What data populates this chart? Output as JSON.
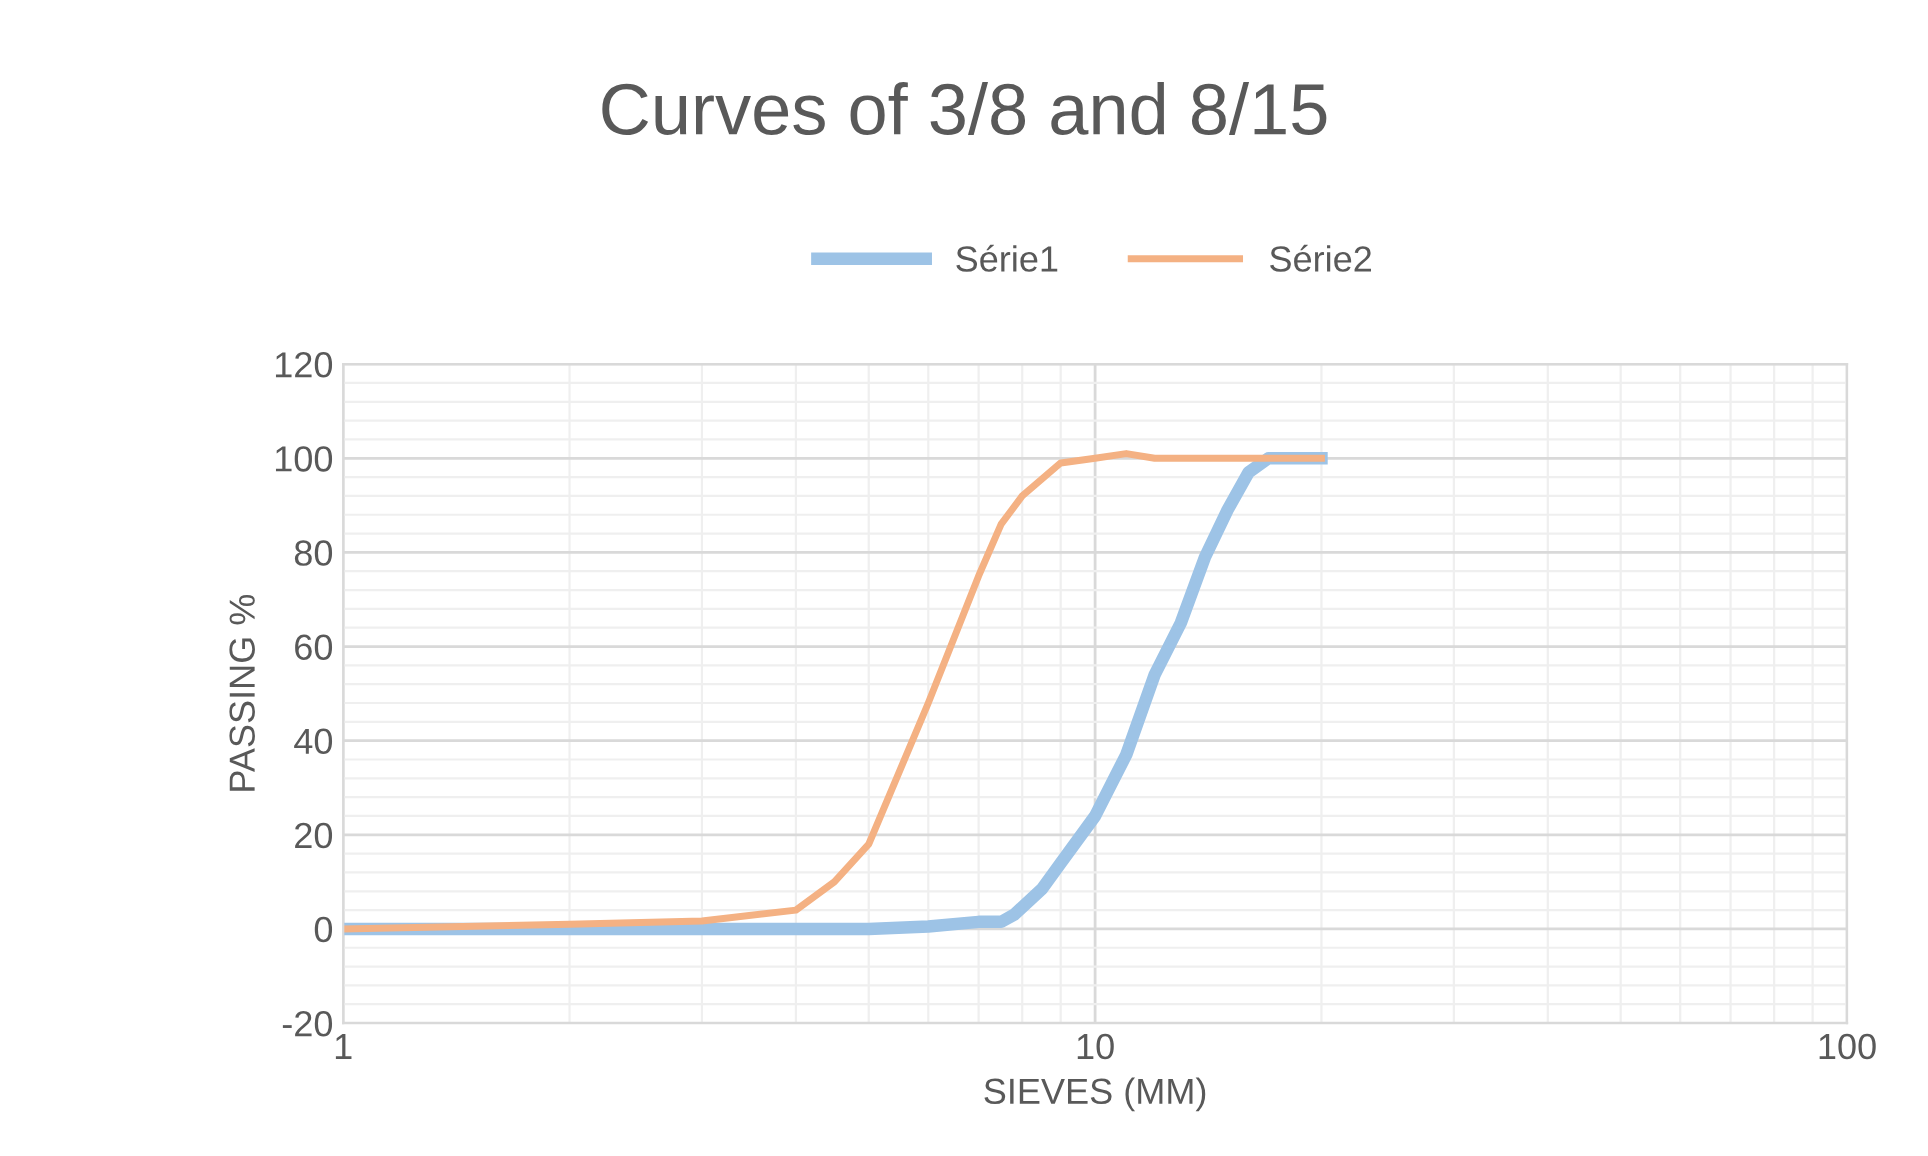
{
  "chart_data": {
    "type": "line",
    "title": "Curves of 3/8 and 8/15",
    "xlabel": "SIEVES (MM)",
    "ylabel": "PASSING %",
    "log": "x",
    "series": [
      {
        "name": "Série1",
        "color": "#9dc3e6",
        "x": [
          1,
          5,
          6,
          7,
          7.5,
          7.8,
          8.5,
          9,
          10,
          11,
          12,
          13,
          14,
          15,
          16,
          17,
          18,
          20
        ],
        "values": [
          0,
          0,
          0.5,
          1.5,
          1.5,
          3,
          8.5,
          14,
          24,
          37,
          54,
          65,
          79,
          89,
          97,
          100,
          100,
          100
        ]
      },
      {
        "name": "Série2",
        "color": "#f4b183",
        "x": [
          1,
          2,
          3,
          4,
          4.5,
          5,
          6,
          7,
          7.5,
          8,
          9,
          10,
          11,
          12,
          20
        ],
        "values": [
          0,
          1,
          1.7,
          4,
          10,
          18,
          48,
          75,
          86,
          92,
          99,
          100,
          101,
          100,
          100
        ]
      }
    ],
    "xlim": [
      1,
      100
    ],
    "xticks": [
      1,
      10,
      100
    ],
    "ylim": [
      -20,
      120
    ],
    "yticks": [
      -20,
      0,
      20,
      40,
      60,
      80,
      100,
      120
    ],
    "grid": true,
    "legend": "top",
    "marker": "none",
    "line_style": "solid"
  }
}
